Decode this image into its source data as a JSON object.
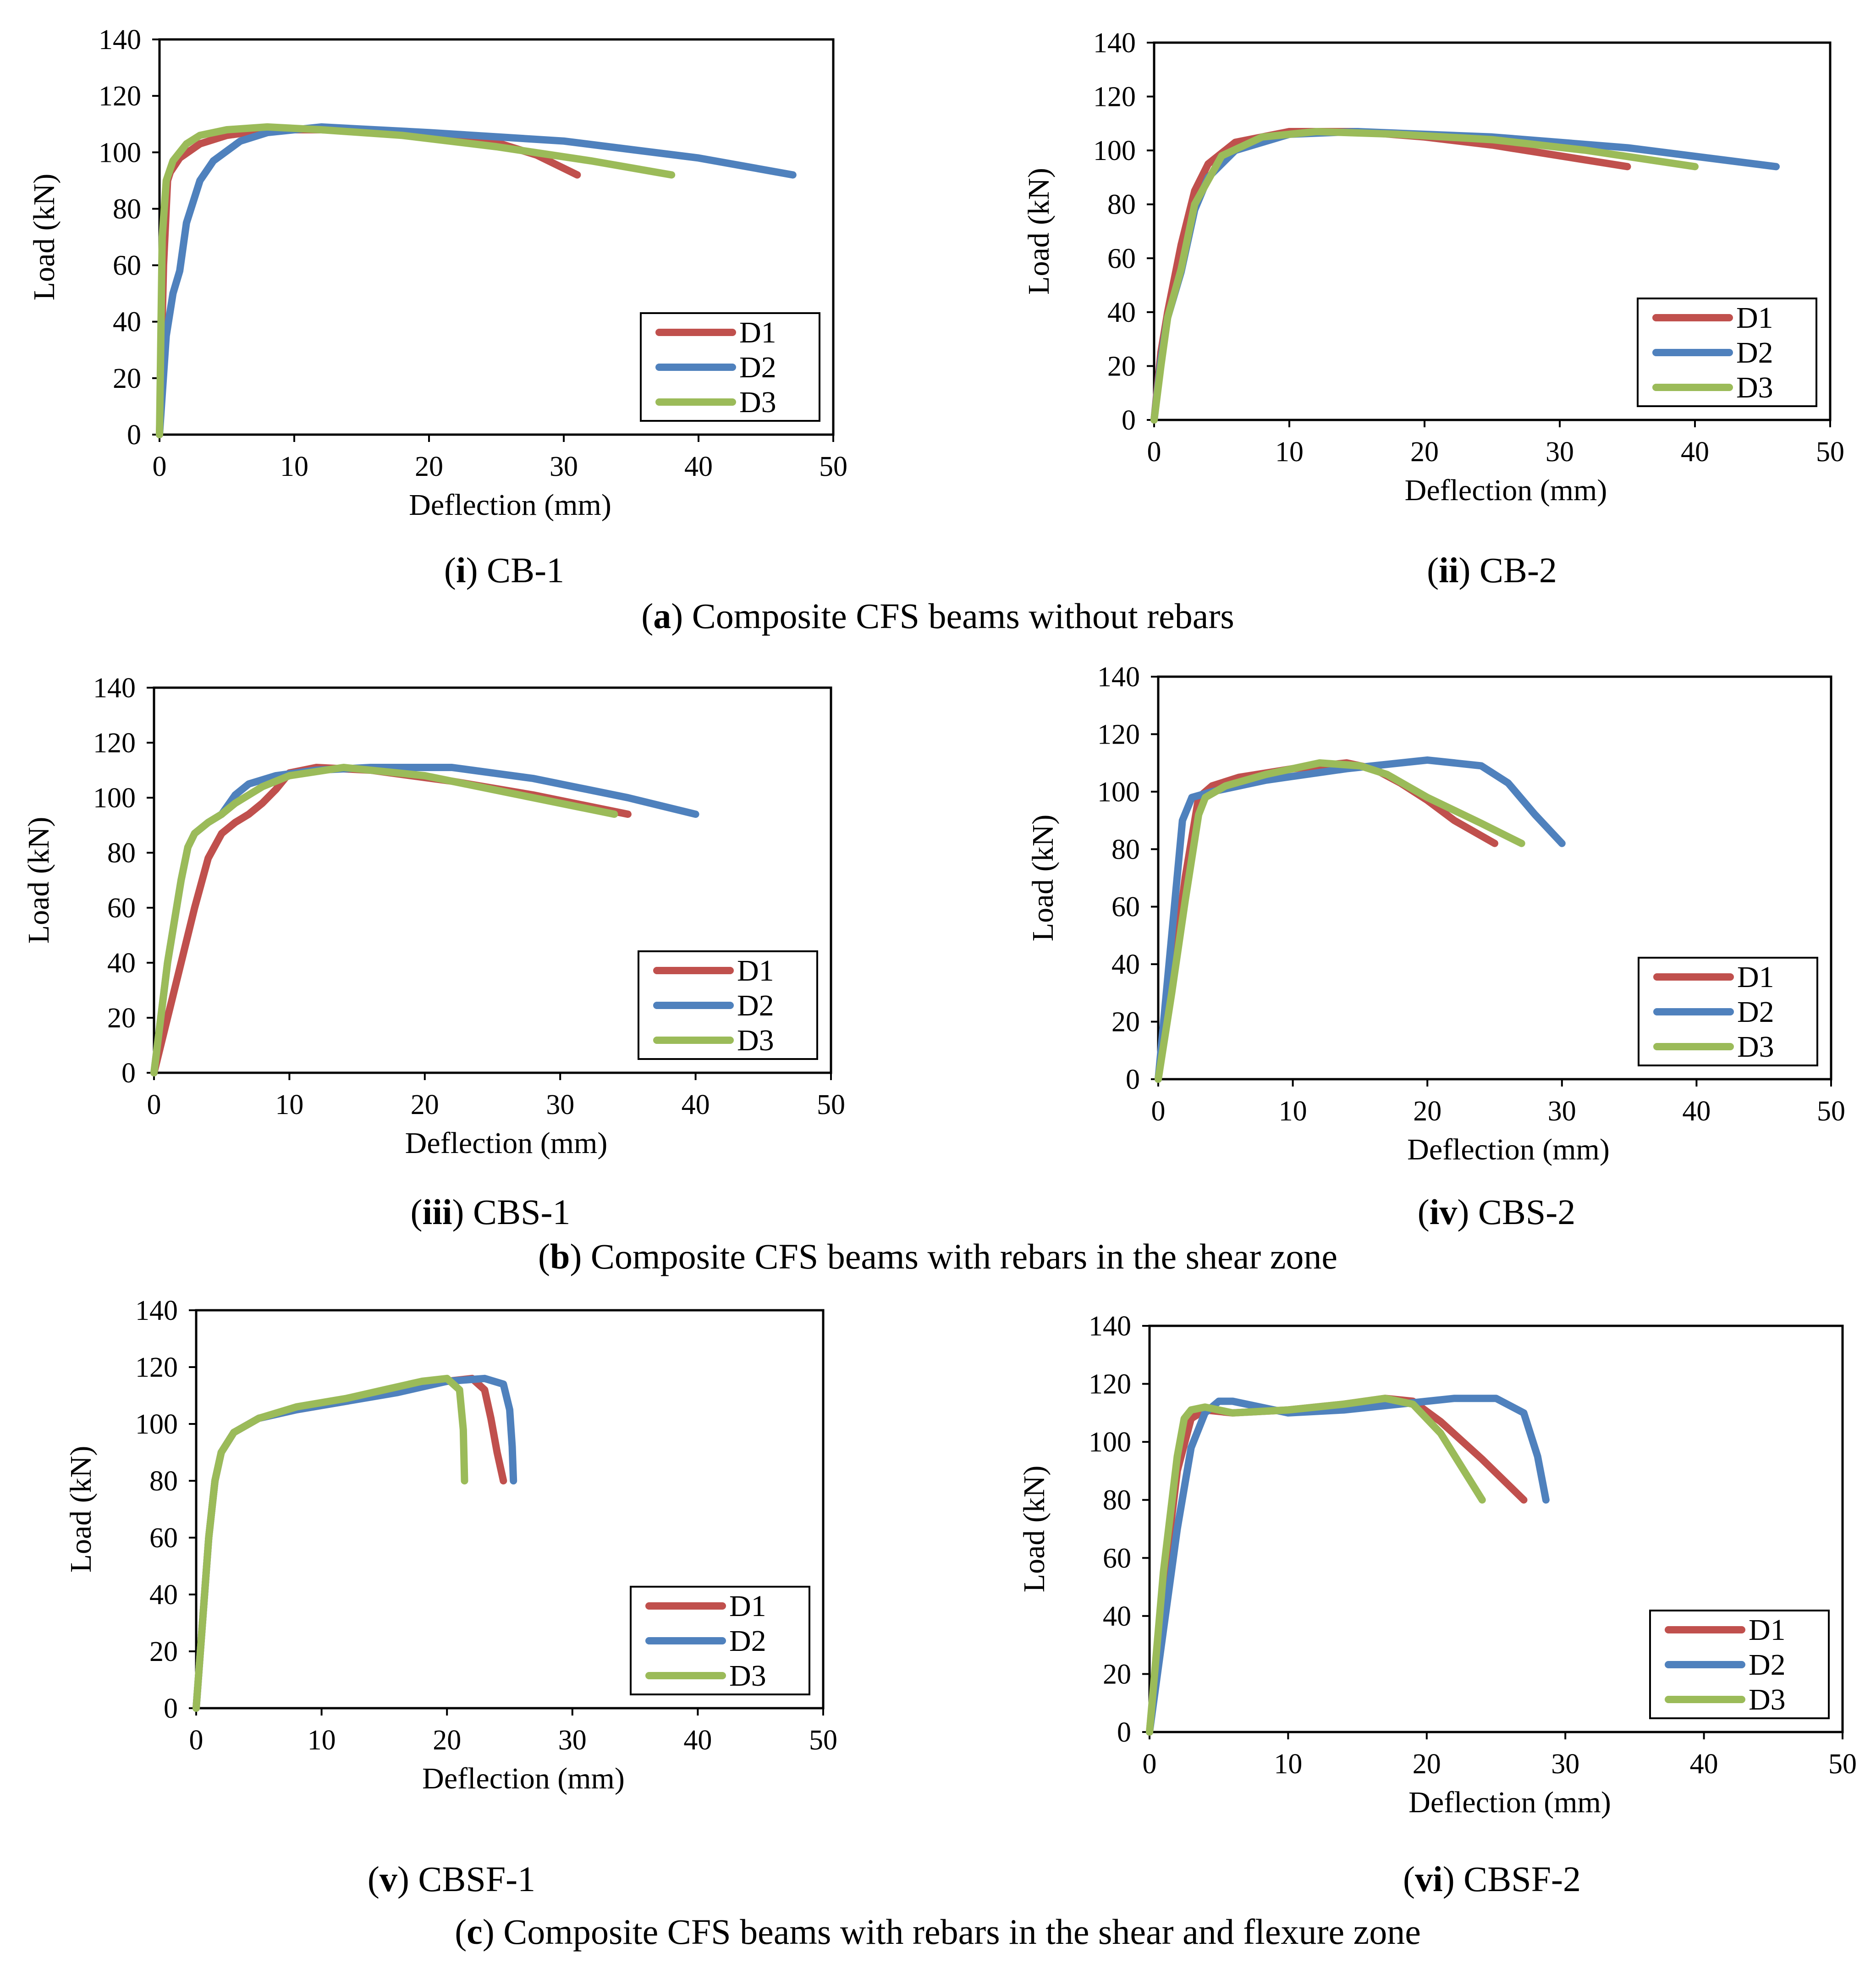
{
  "colors": {
    "D1": "#C0504D",
    "D2": "#4F81BD",
    "D3": "#9BBB59",
    "axis": "#000000"
  },
  "group_captions": [
    {
      "letter": "a",
      "text": "Composite CFS beams without rebars"
    },
    {
      "letter": "b",
      "text": "Composite CFS beams with rebars in the shear zone"
    },
    {
      "letter": "c",
      "text": "Composite CFS beams with rebars in the shear and flexure zone"
    }
  ],
  "chart_data": [
    {
      "type": "line",
      "title": "CB-1",
      "numeral": "i",
      "xlabel": "Deflection (mm)",
      "ylabel": "Load (kN)",
      "xlim": [
        0,
        50
      ],
      "ylim": [
        0,
        140
      ],
      "xticks": [
        "0",
        "10",
        "20",
        "30",
        "40",
        "50"
      ],
      "yticks": [
        "0",
        "20",
        "40",
        "60",
        "80",
        "100",
        "120",
        "140"
      ],
      "legend": [
        "D1",
        "D2",
        "D3"
      ],
      "series": [
        {
          "name": "D1",
          "x": [
            0,
            0.3,
            0.5,
            0.6,
            0.8,
            1.5,
            3,
            5,
            8,
            12,
            18,
            24,
            28,
            31
          ],
          "y": [
            0,
            60,
            80,
            90,
            93,
            98,
            103,
            106,
            108,
            108,
            107,
            105,
            99,
            92
          ]
        },
        {
          "name": "D2",
          "x": [
            0,
            0.5,
            1,
            1.5,
            2,
            3,
            4,
            6,
            8,
            12,
            20,
            30,
            40,
            47
          ],
          "y": [
            0,
            35,
            50,
            58,
            75,
            90,
            97,
            104,
            107,
            109,
            107,
            104,
            98,
            92
          ]
        },
        {
          "name": "D3",
          "x": [
            0,
            0.2,
            0.5,
            1,
            2,
            3,
            5,
            8,
            12,
            18,
            25,
            32,
            38
          ],
          "y": [
            0,
            70,
            90,
            97,
            103,
            106,
            108,
            109,
            108,
            106,
            102,
            97,
            92
          ]
        }
      ]
    },
    {
      "type": "line",
      "title": "CB-2",
      "numeral": "ii",
      "xlabel": "Deflection (mm)",
      "ylabel": "Load (kN)",
      "xlim": [
        0,
        50
      ],
      "ylim": [
        0,
        140
      ],
      "xticks": [
        "0",
        "10",
        "20",
        "30",
        "40",
        "50"
      ],
      "yticks": [
        "0",
        "20",
        "40",
        "60",
        "80",
        "100",
        "120",
        "140"
      ],
      "legend": [
        "D1",
        "D2",
        "D3"
      ],
      "series": [
        {
          "name": "D1",
          "x": [
            0,
            0.5,
            1,
            2,
            3,
            4,
            6,
            10,
            15,
            20,
            25,
            30,
            35
          ],
          "y": [
            0,
            25,
            40,
            65,
            85,
            95,
            103,
            107,
            107,
            105,
            102,
            98,
            94
          ]
        },
        {
          "name": "D2",
          "x": [
            0,
            0.5,
            1,
            2,
            3,
            4,
            6,
            10,
            15,
            25,
            35,
            46
          ],
          "y": [
            0,
            22,
            38,
            55,
            78,
            90,
            100,
            106,
            107,
            105,
            101,
            94
          ]
        },
        {
          "name": "D3",
          "x": [
            0,
            0.5,
            1,
            2,
            3,
            5,
            8,
            12,
            18,
            25,
            32,
            40
          ],
          "y": [
            0,
            20,
            38,
            56,
            80,
            98,
            105,
            107,
            106,
            104,
            100,
            94
          ]
        }
      ]
    },
    {
      "type": "line",
      "title": "CBS-1",
      "numeral": "iii",
      "xlabel": "Deflection (mm)",
      "ylabel": "Load (kN)",
      "xlim": [
        0,
        50
      ],
      "ylim": [
        0,
        140
      ],
      "xticks": [
        "0",
        "10",
        "20",
        "30",
        "40",
        "50"
      ],
      "yticks": [
        "0",
        "20",
        "40",
        "60",
        "80",
        "100",
        "120",
        "140"
      ],
      "legend": [
        "D1",
        "D2",
        "D3"
      ],
      "series": [
        {
          "name": "D1",
          "x": [
            0,
            1,
            2,
            3,
            4,
            5,
            6,
            7,
            8,
            9,
            10,
            12,
            16,
            22,
            28,
            35
          ],
          "y": [
            0,
            20,
            40,
            60,
            78,
            87,
            91,
            94,
            98,
            103,
            109,
            111,
            110,
            106,
            101,
            94
          ]
        },
        {
          "name": "D2",
          "x": [
            0,
            1,
            2,
            2.5,
            3,
            4,
            5,
            6,
            7,
            9,
            12,
            16,
            22,
            28,
            35,
            40
          ],
          "y": [
            0,
            40,
            70,
            82,
            87,
            91,
            94,
            101,
            105,
            108,
            110,
            111,
            111,
            107,
            100,
            94
          ]
        },
        {
          "name": "D3",
          "x": [
            0,
            1,
            2,
            2.5,
            3,
            4,
            5,
            6,
            8,
            10,
            14,
            20,
            26,
            34
          ],
          "y": [
            0,
            40,
            70,
            82,
            87,
            91,
            94,
            98,
            104,
            108,
            111,
            108,
            102,
            94
          ]
        }
      ]
    },
    {
      "type": "line",
      "title": "CBS-2",
      "numeral": "iv",
      "xlabel": "Deflection (mm)",
      "ylabel": "Load (kN)",
      "xlim": [
        0,
        50
      ],
      "ylim": [
        0,
        140
      ],
      "xticks": [
        "0",
        "10",
        "20",
        "30",
        "40",
        "50"
      ],
      "yticks": [
        "0",
        "20",
        "40",
        "60",
        "80",
        "100",
        "120",
        "140"
      ],
      "legend": [
        "D1",
        "D2",
        "D3"
      ],
      "series": [
        {
          "name": "D1",
          "x": [
            0,
            1,
            2,
            3,
            4,
            6,
            10,
            14,
            16,
            18,
            20,
            22,
            25
          ],
          "y": [
            0,
            35,
            70,
            98,
            102,
            105,
            108,
            110,
            108,
            103,
            97,
            90,
            82
          ]
        },
        {
          "name": "D2",
          "x": [
            0,
            1,
            1.8,
            2.5,
            4,
            8,
            14,
            20,
            24,
            26,
            28,
            30
          ],
          "y": [
            0,
            50,
            90,
            98,
            100,
            104,
            108,
            111,
            109,
            103,
            92,
            82
          ]
        },
        {
          "name": "D3",
          "x": [
            0,
            1,
            2,
            3,
            3.5,
            5,
            8,
            12,
            15,
            17,
            20,
            24,
            27
          ],
          "y": [
            0,
            30,
            62,
            92,
            98,
            102,
            106,
            110,
            109,
            106,
            98,
            89,
            82
          ]
        }
      ]
    },
    {
      "type": "line",
      "title": "CBSF-1",
      "numeral": "v",
      "xlabel": "Deflection (mm)",
      "ylabel": "Load (kN)",
      "xlim": [
        0,
        50
      ],
      "ylim": [
        0,
        140
      ],
      "xticks": [
        "0",
        "10",
        "20",
        "30",
        "40",
        "50"
      ],
      "yticks": [
        "0",
        "20",
        "40",
        "60",
        "80",
        "100",
        "120",
        "140"
      ],
      "legend": [
        "D1",
        "D2",
        "D3"
      ],
      "series": [
        {
          "name": "D1",
          "x": [
            0,
            0.5,
            1,
            1.5,
            2,
            3,
            5,
            8,
            12,
            16,
            20,
            22,
            23,
            23.5,
            24,
            24.5
          ],
          "y": [
            0,
            30,
            60,
            80,
            90,
            97,
            102,
            105,
            108,
            112,
            115,
            116,
            112,
            102,
            90,
            80
          ]
        },
        {
          "name": "D2",
          "x": [
            0,
            0.5,
            1,
            1.5,
            2,
            3,
            5,
            8,
            12,
            16,
            20,
            23,
            24.5,
            25,
            25.2,
            25.3
          ],
          "y": [
            0,
            30,
            60,
            80,
            90,
            97,
            102,
            105,
            108,
            111,
            115,
            116,
            114,
            105,
            92,
            80
          ]
        },
        {
          "name": "D3",
          "x": [
            0,
            0.5,
            1,
            1.5,
            2,
            3,
            5,
            8,
            12,
            15,
            18,
            20,
            21,
            21.3,
            21.4
          ],
          "y": [
            0,
            30,
            60,
            80,
            90,
            97,
            102,
            106,
            109,
            112,
            115,
            116,
            112,
            98,
            80
          ]
        }
      ]
    },
    {
      "type": "line",
      "title": "CBSF-2",
      "numeral": "vi",
      "xlabel": "Deflection (mm)",
      "ylabel": "Load (kN)",
      "xlim": [
        0,
        50
      ],
      "ylim": [
        0,
        140
      ],
      "xticks": [
        "0",
        "10",
        "20",
        "30",
        "40",
        "50"
      ],
      "yticks": [
        "0",
        "20",
        "40",
        "60",
        "80",
        "100",
        "120",
        "140"
      ],
      "legend": [
        "D1",
        "D2",
        "D3"
      ],
      "series": [
        {
          "name": "D1",
          "x": [
            0,
            1,
            2,
            3,
            4,
            6,
            10,
            14,
            17,
            19,
            21,
            24,
            27
          ],
          "y": [
            0,
            50,
            90,
            108,
            111,
            110,
            111,
            113,
            115,
            114,
            107,
            94,
            80
          ]
        },
        {
          "name": "D2",
          "x": [
            0,
            1,
            2,
            3,
            4,
            5,
            6,
            8,
            10,
            14,
            18,
            22,
            25,
            27,
            28,
            28.6
          ],
          "y": [
            0,
            35,
            70,
            98,
            110,
            114,
            114,
            112,
            110,
            111,
            113,
            115,
            115,
            110,
            95,
            80
          ]
        },
        {
          "name": "D3",
          "x": [
            0,
            1,
            2,
            2.5,
            3,
            4,
            6,
            10,
            14,
            17,
            19,
            21,
            24
          ],
          "y": [
            0,
            55,
            95,
            108,
            111,
            112,
            110,
            111,
            113,
            115,
            113,
            103,
            80
          ]
        }
      ]
    }
  ]
}
